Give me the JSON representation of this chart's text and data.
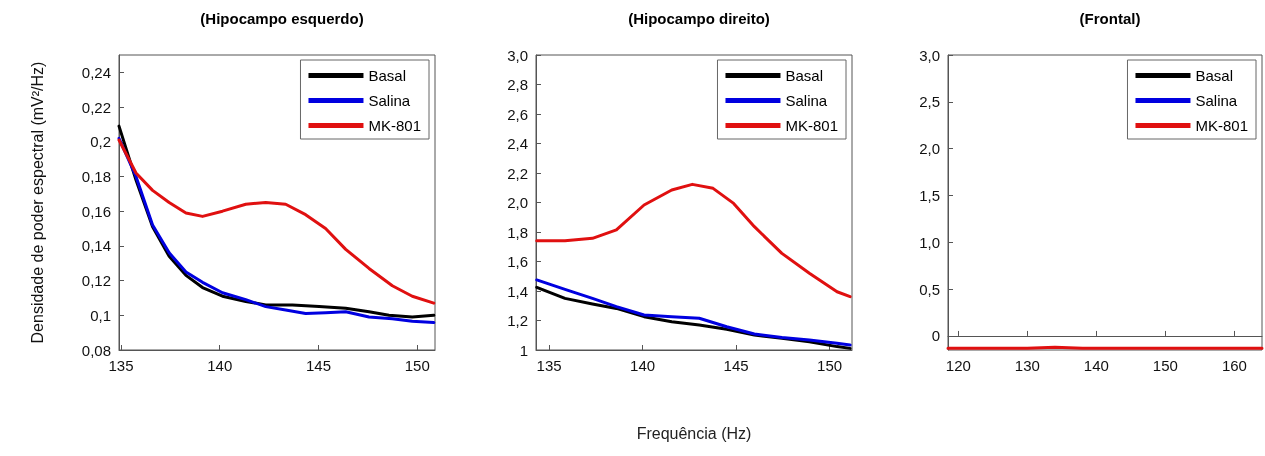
{
  "chart_data": [
    {
      "type": "line",
      "title": "(Hipocampo esquerdo)",
      "ylabel": "Densidade de poder espectral (mV²/Hz)",
      "legend": "top right",
      "xlim": [
        134.9,
        150.9
      ],
      "xticks": [
        135,
        140,
        145,
        150
      ],
      "ylim": [
        0.08,
        0.25
      ],
      "yticks": [
        {
          "value": 0.08,
          "label": "0,08"
        },
        {
          "value": 0.1,
          "label": "0,1"
        },
        {
          "value": 0.12,
          "label": "0,12"
        },
        {
          "value": 0.14,
          "label": "0,14"
        },
        {
          "value": 0.16,
          "label": "0,16"
        },
        {
          "value": 0.18,
          "label": "0,18"
        },
        {
          "value": 0.2,
          "label": "0,2"
        },
        {
          "value": 0.22,
          "label": "0,22"
        },
        {
          "value": 0.24,
          "label": "0,24"
        }
      ],
      "series": [
        {
          "name": "Basal",
          "color": "#000000",
          "x": [
            134.9,
            135.76,
            136.6,
            137.44,
            138.29,
            139.13,
            140.14,
            141.32,
            142.33,
            143.68,
            145.03,
            146.38,
            147.56,
            148.57,
            149.75,
            150.84
          ],
          "values": [
            0.209,
            0.178,
            0.151,
            0.134,
            0.123,
            0.116,
            0.111,
            0.108,
            0.106,
            0.106,
            0.105,
            0.104,
            0.102,
            0.1,
            0.099,
            0.1
          ]
        },
        {
          "name": "Salina",
          "color": "#0000e0",
          "x": [
            134.9,
            135.76,
            136.6,
            137.44,
            138.29,
            139.13,
            140.14,
            141.32,
            142.33,
            143.34,
            144.35,
            145.36,
            146.38,
            147.56,
            148.74,
            149.75,
            150.84
          ],
          "values": [
            0.202,
            0.18,
            0.152,
            0.136,
            0.125,
            0.119,
            0.113,
            0.109,
            0.105,
            0.103,
            0.101,
            0.1015,
            0.102,
            0.099,
            0.098,
            0.0966,
            0.0958
          ]
        },
        {
          "name": "MK-801",
          "color": "#e01010",
          "x": [
            134.9,
            135.76,
            136.6,
            137.44,
            138.29,
            139.13,
            140.14,
            141.32,
            142.33,
            143.34,
            144.35,
            145.36,
            146.38,
            147.56,
            148.74,
            149.75,
            150.84
          ],
          "values": [
            0.201,
            0.182,
            0.172,
            0.165,
            0.159,
            0.157,
            0.16,
            0.164,
            0.165,
            0.164,
            0.158,
            0.15,
            0.138,
            0.127,
            0.117,
            0.111,
            0.107
          ]
        }
      ]
    },
    {
      "type": "line",
      "title": "(Hipocampo direito)",
      "xlabel": "Frequência (Hz)",
      "legend": "top right",
      "xlim": [
        134.3,
        151.2
      ],
      "xticks": [
        135,
        140,
        145,
        150
      ],
      "ylim": [
        1,
        3
      ],
      "yticks": [
        1,
        {
          "value": 1.2,
          "label": "1,2"
        },
        {
          "value": 1.4,
          "label": "1,4"
        },
        {
          "value": 1.6,
          "label": "1,6"
        },
        {
          "value": 1.8,
          "label": "1,8"
        },
        {
          "value": 2,
          "label": "2,0"
        },
        {
          "value": 2.2,
          "label": "2,2"
        },
        {
          "value": 2.4,
          "label": "2,4"
        },
        {
          "value": 2.6,
          "label": "2,6"
        },
        {
          "value": 2.8,
          "label": "2,8"
        },
        {
          "value": 3,
          "label": "3,0"
        }
      ],
      "series": [
        {
          "name": "Basal",
          "color": "#000000",
          "x": [
            134.34,
            135.85,
            137.32,
            138.6,
            140.08,
            141.56,
            143.03,
            144.5,
            145.98,
            147.45,
            148.92,
            150.4,
            151.1
          ],
          "values": [
            1.425,
            1.35,
            1.312,
            1.282,
            1.226,
            1.192,
            1.169,
            1.14,
            1.102,
            1.079,
            1.056,
            1.023,
            1.011
          ]
        },
        {
          "name": "Salina",
          "color": "#0000e0",
          "x": [
            134.34,
            135.85,
            137.32,
            138.6,
            140.08,
            141.56,
            143.03,
            144.5,
            145.98,
            147.45,
            148.92,
            150.4,
            151.1
          ],
          "values": [
            1.475,
            1.411,
            1.35,
            1.294,
            1.237,
            1.226,
            1.215,
            1.158,
            1.108,
            1.084,
            1.068,
            1.045,
            1.034
          ]
        },
        {
          "name": "MK-801",
          "color": "#e01010",
          "x": [
            134.34,
            135.85,
            137.32,
            138.6,
            140.08,
            141.56,
            142.66,
            143.77,
            144.87,
            145.98,
            147.45,
            148.92,
            150.4,
            151.1
          ],
          "values": [
            1.741,
            1.741,
            1.757,
            1.814,
            1.983,
            2.085,
            2.123,
            2.096,
            1.994,
            1.836,
            1.655,
            1.52,
            1.395,
            1.362
          ]
        }
      ]
    },
    {
      "type": "line",
      "title": "(Frontal)",
      "legend": "top right",
      "xlim": [
        118.5,
        164
      ],
      "xticks": [
        120,
        130,
        140,
        150,
        160
      ],
      "ylim": [
        -0.15,
        3
      ],
      "yticks": [
        0,
        {
          "value": 0.5,
          "label": "0,5"
        },
        {
          "value": 1,
          "label": "1,0"
        },
        {
          "value": 1.5,
          "label": "1,5"
        },
        {
          "value": 2,
          "label": "2,0"
        },
        {
          "value": 2.5,
          "label": "2,5"
        },
        {
          "value": 3,
          "label": "3,0"
        }
      ],
      "series": [
        {
          "name": "Basal",
          "color": "#000000"
        },
        {
          "name": "Salina",
          "color": "#0000e0"
        },
        {
          "name": "MK-801",
          "color": "#e01010",
          "x": [
            118.5,
            125,
            130,
            134,
            138,
            145,
            155,
            164
          ],
          "values": [
            -0.13,
            -0.13,
            -0.13,
            -0.12,
            -0.13,
            -0.13,
            -0.13,
            -0.13
          ]
        }
      ]
    }
  ]
}
